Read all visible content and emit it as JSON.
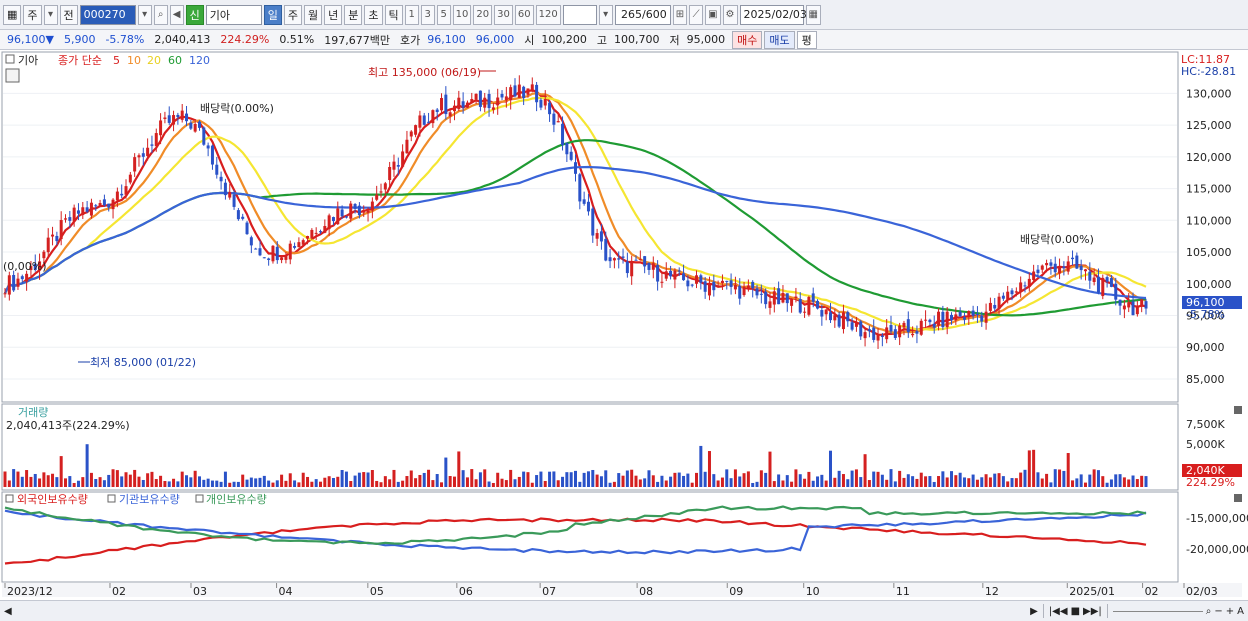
{
  "toolbar": {
    "market": "주",
    "prev": "전",
    "code": "000270",
    "tag": "신",
    "name": "기아",
    "periods": [
      "일",
      "주",
      "월",
      "년",
      "분",
      "초",
      "틱"
    ],
    "active_period": "일",
    "intervals": [
      "1",
      "3",
      "5",
      "10",
      "20",
      "30",
      "60",
      "120"
    ],
    "count": "265",
    "count_max": "/600",
    "date": "2025/02/03"
  },
  "quote": {
    "price": "96,100▼",
    "change": "5,900",
    "change_pct": "-5.78%",
    "volume": "2,040,413",
    "volume_ratio": "224.29%",
    "turnover": "0.51%",
    "amount": "197,677백만",
    "bid_label": "호가",
    "bid1": "96,100",
    "bid2": "96,000",
    "open_label": "시",
    "open": "100,200",
    "high_label": "고",
    "high": "100,700",
    "low_label": "저",
    "low": "95,000",
    "buy": "매수",
    "sell": "매도",
    "eval": "평"
  },
  "price_panel": {
    "legend_name": "기아",
    "legend_type": "종가 단순",
    "ma_periods": [
      "5",
      "10",
      "20",
      "60",
      "120"
    ],
    "lc": "LC:11.87",
    "hc": "HC:-28.81",
    "y_ticks": [
      "130,000",
      "125,000",
      "120,000",
      "115,000",
      "110,000",
      "105,000",
      "100,000",
      "95,000",
      "90,000",
      "85,000"
    ],
    "current_label": "96,100",
    "current_pct": "-5.78%",
    "annotations": {
      "high": "최고 135,000 (06/19)",
      "low": "최저 85,000 (01/22)",
      "div1": "배당락(0.00%)",
      "div2": "(0,00%)",
      "div3": "배당락(0.00%)"
    }
  },
  "volume_panel": {
    "title": "거래량",
    "value": "2,040,413주(224.29%)",
    "y_ticks": [
      "7,500K",
      "5,000K"
    ],
    "current_label": "2,040K",
    "current_pct": "224.29%"
  },
  "holding_panel": {
    "legend": [
      "외국인보유수량",
      "기관보유수량",
      "개인보유수량"
    ],
    "y_ticks": [
      "-15,000,000",
      "-20,000,000"
    ]
  },
  "x_axis": [
    "2023/12",
    "02",
    "03",
    "04",
    "05",
    "06",
    "07",
    "08",
    "09",
    "10",
    "11",
    "12",
    "2025/01",
    "02",
    "02/03"
  ],
  "colors": {
    "up": "#d42020",
    "down": "#2a52c8",
    "ma5": "#d81e1e",
    "ma10": "#f08c28",
    "ma20": "#f5e632",
    "ma60": "#1f9b33",
    "ma120": "#3a64d8",
    "foreign": "#d81e1e",
    "inst": "#3a64d8",
    "retail": "#3a9a5a"
  },
  "chart_data": {
    "type": "line",
    "x": [
      "2023/12",
      "02",
      "03",
      "04",
      "05",
      "06",
      "07",
      "08",
      "09",
      "10",
      "11",
      "12",
      "2025/01",
      "02"
    ],
    "series": [
      {
        "name": "종가",
        "values": [
          100000,
          112000,
          126000,
          105000,
          112000,
          128000,
          130000,
          103000,
          100000,
          97000,
          92000,
          95000,
          103000,
          96100
        ]
      }
    ],
    "ylim": [
      82000,
      134000
    ]
  }
}
